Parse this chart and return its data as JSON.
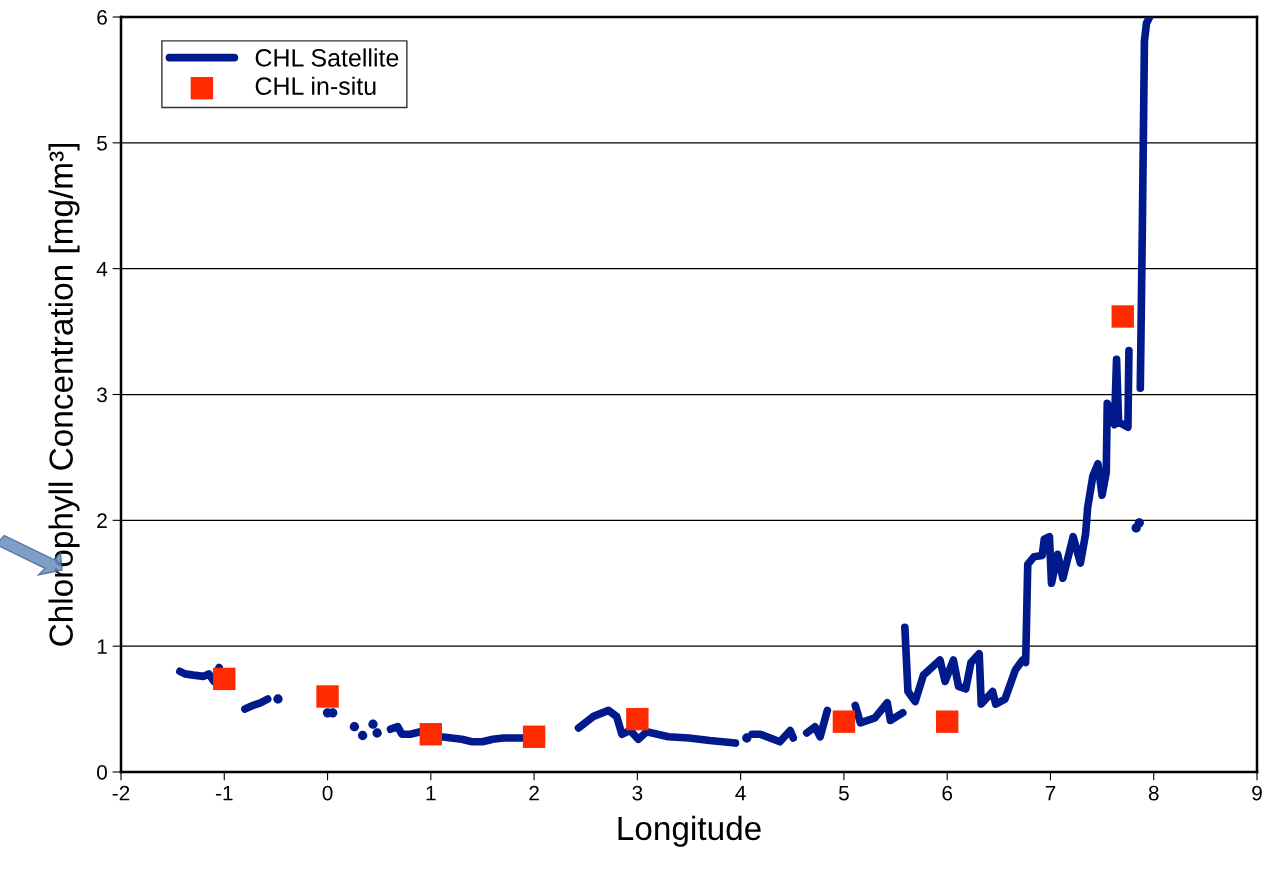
{
  "chart_data": {
    "type": "line",
    "xlabel": "Longitude",
    "ylabel": "Chlorophyll Concentration [mg/m³]",
    "xlim": [
      -2,
      9
    ],
    "xticks": [
      -2,
      -1,
      0,
      1,
      2,
      3,
      4,
      5,
      6,
      7,
      8,
      9
    ],
    "ylim": [
      0,
      6
    ],
    "yticks": [
      0,
      1,
      2,
      3,
      4,
      5,
      6
    ],
    "grid": "y",
    "legend": "top left",
    "series": [
      {
        "name": "CHL Satellite",
        "color": "#001a8c",
        "marker": "none",
        "line_style": "solid",
        "x": [
          -1.43,
          -1.38,
          -1.3,
          -1.2,
          -1.15,
          -1.1,
          -1.05,
          -0.9,
          -0.8,
          -0.72,
          -0.65,
          -0.58,
          0.56,
          0.61,
          0.68,
          0.72,
          0.8,
          0.9,
          1.1,
          1.2,
          1.3,
          1.4,
          1.5,
          1.6,
          1.7,
          1.8,
          1.9,
          2.2,
          2.43,
          2.57,
          2.72,
          2.8,
          2.85,
          2.93,
          3.01,
          3.09,
          3.3,
          3.5,
          3.7,
          3.95,
          4.1,
          4.11,
          4.19,
          4.38,
          4.48,
          4.51,
          4.57,
          4.64,
          4.72,
          4.77,
          4.84,
          4.97,
          5.11,
          5.16,
          5.3,
          5.42,
          5.45,
          5.57,
          5.58,
          5.59,
          5.62,
          5.69,
          5.77,
          5.93,
          5.98,
          6.06,
          6.11,
          6.18,
          6.23,
          6.31,
          6.33,
          6.44,
          6.47,
          6.56,
          6.66,
          6.73,
          6.76,
          6.78,
          6.84,
          6.92,
          6.94,
          6.99,
          7.01,
          7.07,
          7.12,
          7.22,
          7.29,
          7.34,
          7.36,
          7.41,
          7.46,
          7.5,
          7.54,
          7.55,
          7.62,
          7.64,
          7.66,
          7.75,
          7.76,
          7.81,
          7.87,
          7.89,
          7.91,
          7.93,
          7.96
        ],
        "values": [
          0.8,
          0.78,
          0.77,
          0.76,
          0.78,
          0.72,
          0.83,
          null,
          0.5,
          0.53,
          0.55,
          0.58,
          null,
          0.34,
          0.36,
          0.3,
          0.3,
          0.32,
          0.28,
          0.27,
          0.26,
          0.24,
          0.24,
          0.26,
          0.27,
          0.27,
          0.27,
          null,
          0.35,
          0.44,
          0.49,
          0.44,
          0.3,
          0.33,
          0.26,
          0.32,
          0.28,
          0.27,
          0.25,
          0.23,
          null,
          0.3,
          0.3,
          0.24,
          0.33,
          0.27,
          null,
          0.31,
          0.36,
          0.28,
          0.49,
          null,
          0.53,
          0.39,
          0.43,
          0.55,
          0.41,
          0.47,
          null,
          1.15,
          0.64,
          0.56,
          0.77,
          0.89,
          0.72,
          0.89,
          0.68,
          0.66,
          0.87,
          0.94,
          0.54,
          0.64,
          0.54,
          0.58,
          0.81,
          0.89,
          0.87,
          1.65,
          1.71,
          1.72,
          1.85,
          1.87,
          1.5,
          1.73,
          1.54,
          1.87,
          1.66,
          1.89,
          2.1,
          2.35,
          2.45,
          2.2,
          2.38,
          2.93,
          2.76,
          3.28,
          2.78,
          2.74,
          3.35,
          null,
          3.05,
          4.34,
          5.81,
          5.95,
          6.0
        ]
      },
      {
        "type": "scatter",
        "color": "#001a8c",
        "marker": "circle",
        "x": [
          -0.48,
          0.0,
          0.05,
          0.26,
          0.34,
          0.44,
          0.48,
          4.06,
          7.83,
          7.86
        ],
        "values": [
          0.58,
          0.47,
          0.47,
          0.36,
          0.29,
          0.38,
          0.31,
          0.27,
          1.94,
          1.98
        ]
      },
      {
        "name": "CHL in-situ",
        "type": "scatter",
        "color": "#ff2a00",
        "marker": "square",
        "x": [
          -1,
          0,
          1,
          2,
          3,
          5,
          6,
          7.7
        ],
        "values": [
          0.74,
          0.6,
          0.3,
          0.28,
          0.42,
          0.4,
          0.4,
          3.62
        ]
      }
    ]
  }
}
